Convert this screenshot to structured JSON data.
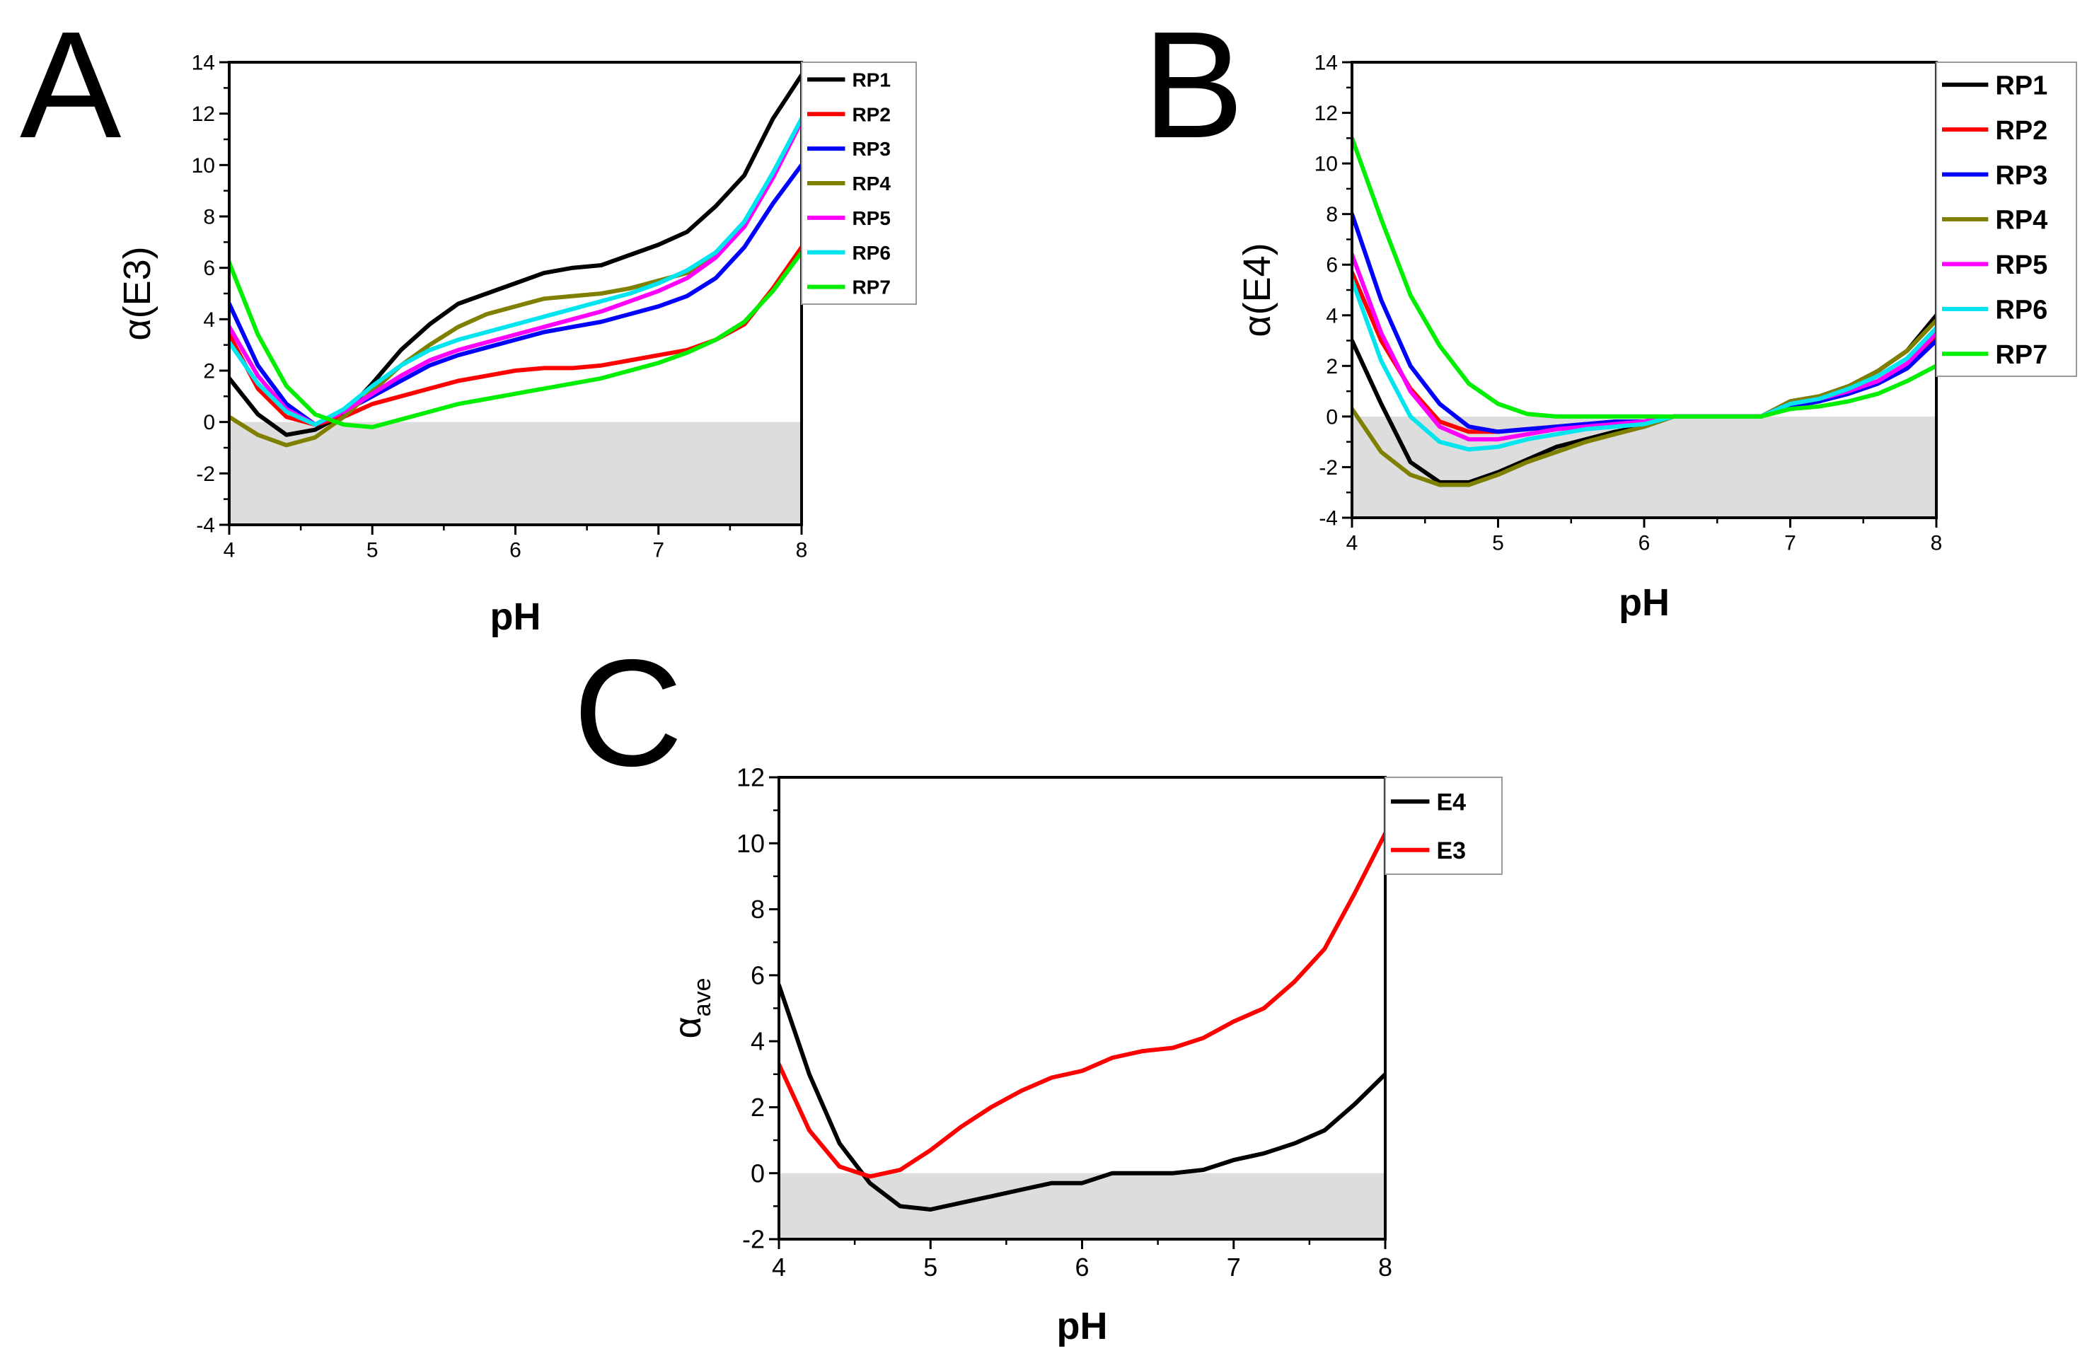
{
  "figure": {
    "panel_labels": [
      "A",
      "B",
      "C"
    ]
  },
  "chart_data": [
    {
      "panel": "A",
      "type": "line",
      "title": "",
      "xlabel": "pH",
      "ylabel": "α(E3)",
      "xlim": [
        4,
        8
      ],
      "ylim": [
        -4,
        14
      ],
      "xticks": [
        4,
        5,
        6,
        7,
        8
      ],
      "yticks": [
        -4,
        -2,
        0,
        2,
        4,
        6,
        8,
        10,
        12,
        14
      ],
      "shaded_region": {
        "y_from": -4,
        "y_to": 0,
        "color": "#dddddd"
      },
      "legend_position": "outside-top-right",
      "x": [
        4.0,
        4.2,
        4.4,
        4.6,
        4.8,
        5.0,
        5.2,
        5.4,
        5.6,
        5.8,
        6.0,
        6.2,
        6.4,
        6.6,
        6.8,
        7.0,
        7.2,
        7.4,
        7.6,
        7.8,
        8.0
      ],
      "series": [
        {
          "name": "RP1",
          "color": "#000000",
          "values": [
            1.7,
            0.3,
            -0.5,
            -0.3,
            0.3,
            1.5,
            2.8,
            3.8,
            4.6,
            5.0,
            5.4,
            5.8,
            6.0,
            6.1,
            6.5,
            6.9,
            7.4,
            8.4,
            9.6,
            11.8,
            13.5
          ]
        },
        {
          "name": "RP2",
          "color": "#ff0000",
          "values": [
            3.4,
            1.3,
            0.2,
            -0.1,
            0.2,
            0.7,
            1.0,
            1.3,
            1.6,
            1.8,
            2.0,
            2.1,
            2.1,
            2.2,
            2.4,
            2.6,
            2.8,
            3.2,
            3.8,
            5.2,
            6.8
          ]
        },
        {
          "name": "RP3",
          "color": "#0000ff",
          "values": [
            4.6,
            2.2,
            0.7,
            -0.1,
            0.4,
            1.0,
            1.6,
            2.2,
            2.6,
            2.9,
            3.2,
            3.5,
            3.7,
            3.9,
            4.2,
            4.5,
            4.9,
            5.6,
            6.8,
            8.5,
            10.0
          ]
        },
        {
          "name": "RP4",
          "color": "#808000",
          "values": [
            0.2,
            -0.5,
            -0.9,
            -0.6,
            0.2,
            1.2,
            2.2,
            3.0,
            3.7,
            4.2,
            4.5,
            4.8,
            4.9,
            5.0,
            5.2,
            5.5,
            5.8,
            6.6,
            7.6,
            9.6,
            11.8
          ]
        },
        {
          "name": "RP5",
          "color": "#ff00ff",
          "values": [
            3.7,
            1.8,
            0.5,
            -0.1,
            0.4,
            1.1,
            1.8,
            2.4,
            2.8,
            3.1,
            3.4,
            3.7,
            4.0,
            4.3,
            4.7,
            5.1,
            5.6,
            6.4,
            7.6,
            9.5,
            11.7
          ]
        },
        {
          "name": "RP6",
          "color": "#00e5ee",
          "values": [
            3.1,
            1.5,
            0.4,
            -0.1,
            0.5,
            1.4,
            2.2,
            2.8,
            3.2,
            3.5,
            3.8,
            4.1,
            4.4,
            4.7,
            5.0,
            5.4,
            5.9,
            6.6,
            7.8,
            9.7,
            11.8
          ]
        },
        {
          "name": "RP7",
          "color": "#00ee00",
          "values": [
            6.2,
            3.4,
            1.4,
            0.3,
            -0.1,
            -0.2,
            0.1,
            0.4,
            0.7,
            0.9,
            1.1,
            1.3,
            1.5,
            1.7,
            2.0,
            2.3,
            2.7,
            3.2,
            3.9,
            5.1,
            6.6
          ]
        }
      ]
    },
    {
      "panel": "B",
      "type": "line",
      "title": "",
      "xlabel": "pH",
      "ylabel": "α(E4)",
      "xlim": [
        4,
        8
      ],
      "ylim": [
        -4,
        14
      ],
      "xticks": [
        4,
        5,
        6,
        7,
        8
      ],
      "yticks": [
        -4,
        -2,
        0,
        2,
        4,
        6,
        8,
        10,
        12,
        14
      ],
      "shaded_region": {
        "y_from": -4,
        "y_to": 0,
        "color": "#dddddd"
      },
      "legend_position": "outside-top-right",
      "x": [
        4.0,
        4.2,
        4.4,
        4.6,
        4.8,
        5.0,
        5.2,
        5.4,
        5.6,
        5.8,
        6.0,
        6.2,
        6.4,
        6.6,
        6.8,
        7.0,
        7.2,
        7.4,
        7.6,
        7.8,
        8.0
      ],
      "series": [
        {
          "name": "RP1",
          "color": "#000000",
          "values": [
            3.0,
            0.5,
            -1.8,
            -2.6,
            -2.6,
            -2.2,
            -1.7,
            -1.2,
            -0.9,
            -0.6,
            -0.4,
            0.0,
            0.0,
            0.0,
            0.0,
            0.6,
            0.8,
            1.2,
            1.8,
            2.6,
            4.0
          ]
        },
        {
          "name": "RP2",
          "color": "#ff0000",
          "values": [
            5.7,
            3.0,
            1.1,
            -0.2,
            -0.6,
            -0.6,
            -0.5,
            -0.4,
            -0.3,
            -0.3,
            -0.2,
            0.0,
            0.0,
            0.0,
            0.0,
            0.4,
            0.6,
            1.0,
            1.4,
            2.0,
            3.2
          ]
        },
        {
          "name": "RP3",
          "color": "#0000ff",
          "values": [
            8.0,
            4.6,
            2.0,
            0.5,
            -0.4,
            -0.6,
            -0.5,
            -0.4,
            -0.3,
            -0.2,
            -0.2,
            0.0,
            0.0,
            0.0,
            0.0,
            0.4,
            0.6,
            0.9,
            1.3,
            1.9,
            3.0
          ]
        },
        {
          "name": "RP4",
          "color": "#808000",
          "values": [
            0.3,
            -1.4,
            -2.3,
            -2.7,
            -2.7,
            -2.3,
            -1.8,
            -1.4,
            -1.0,
            -0.7,
            -0.4,
            0.0,
            0.0,
            0.0,
            0.0,
            0.6,
            0.8,
            1.2,
            1.8,
            2.6,
            3.8
          ]
        },
        {
          "name": "RP5",
          "color": "#ff00ff",
          "values": [
            6.4,
            3.3,
            1.0,
            -0.4,
            -0.9,
            -0.9,
            -0.7,
            -0.5,
            -0.4,
            -0.3,
            -0.2,
            0.0,
            0.0,
            0.0,
            0.0,
            0.5,
            0.7,
            1.0,
            1.4,
            2.1,
            3.3
          ]
        },
        {
          "name": "RP6",
          "color": "#00e5ee",
          "values": [
            5.4,
            2.2,
            0.0,
            -1.0,
            -1.3,
            -1.2,
            -0.9,
            -0.7,
            -0.5,
            -0.4,
            -0.3,
            0.0,
            0.0,
            0.0,
            0.0,
            0.5,
            0.7,
            1.1,
            1.6,
            2.3,
            3.5
          ]
        },
        {
          "name": "RP7",
          "color": "#00ee00",
          "values": [
            11.0,
            7.8,
            4.8,
            2.8,
            1.3,
            0.5,
            0.1,
            0.0,
            0.0,
            0.0,
            0.0,
            0.0,
            0.0,
            0.0,
            0.0,
            0.3,
            0.4,
            0.6,
            0.9,
            1.4,
            2.0
          ]
        }
      ]
    },
    {
      "panel": "C",
      "type": "line",
      "title": "",
      "xlabel": "pH",
      "ylabel": "α",
      "ylabel_subscript": "ave",
      "xlim": [
        4,
        8
      ],
      "ylim": [
        -2,
        12
      ],
      "xticks": [
        4,
        5,
        6,
        7,
        8
      ],
      "yticks": [
        -2,
        0,
        2,
        4,
        6,
        8,
        10,
        12
      ],
      "shaded_region": {
        "y_from": -2,
        "y_to": 0,
        "color": "#dddddd"
      },
      "legend_position": "outside-top-right",
      "x": [
        4.0,
        4.2,
        4.4,
        4.6,
        4.8,
        5.0,
        5.2,
        5.4,
        5.6,
        5.8,
        6.0,
        6.2,
        6.4,
        6.6,
        6.8,
        7.0,
        7.2,
        7.4,
        7.6,
        7.8,
        8.0
      ],
      "series": [
        {
          "name": "E4",
          "color": "#000000",
          "values": [
            5.7,
            3.0,
            0.9,
            -0.3,
            -1.0,
            -1.1,
            -0.9,
            -0.7,
            -0.5,
            -0.3,
            -0.3,
            0.0,
            0.0,
            0.0,
            0.1,
            0.4,
            0.6,
            0.9,
            1.3,
            2.1,
            3.0
          ]
        },
        {
          "name": "E3",
          "color": "#ff0000",
          "values": [
            3.3,
            1.3,
            0.2,
            -0.1,
            0.1,
            0.7,
            1.4,
            2.0,
            2.5,
            2.9,
            3.1,
            3.5,
            3.7,
            3.8,
            4.1,
            4.6,
            5.0,
            5.8,
            6.8,
            8.5,
            10.3
          ]
        }
      ]
    }
  ]
}
